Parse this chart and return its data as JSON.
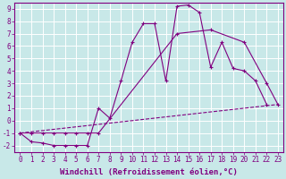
{
  "xlabel": "Windchill (Refroidissement éolien,°C)",
  "bg_color": "#c8e8e8",
  "line_color": "#800080",
  "grid_color": "#aacccc",
  "xlim": [
    -0.5,
    23.5
  ],
  "ylim": [
    -2.5,
    9.5
  ],
  "xticks": [
    0,
    1,
    2,
    3,
    4,
    5,
    6,
    7,
    8,
    9,
    10,
    11,
    12,
    13,
    14,
    15,
    16,
    17,
    18,
    19,
    20,
    21,
    22,
    23
  ],
  "yticks": [
    -2,
    -1,
    0,
    1,
    2,
    3,
    4,
    5,
    6,
    7,
    8,
    9
  ],
  "line1_x": [
    0,
    1,
    2,
    3,
    4,
    5,
    6,
    7,
    8,
    9,
    10,
    11,
    12,
    13,
    14,
    15,
    16,
    17,
    18,
    19,
    20,
    21,
    22
  ],
  "line1_y": [
    -1.0,
    -1.7,
    -1.8,
    -2.0,
    -2.0,
    -2.0,
    -2.0,
    1.0,
    0.2,
    3.2,
    6.3,
    7.8,
    7.8,
    3.2,
    9.2,
    9.3,
    8.7,
    4.3,
    6.3,
    4.2,
    4.0,
    3.2,
    1.3
  ],
  "line2_x": [
    0,
    1,
    2,
    3,
    4,
    5,
    6,
    7,
    14,
    17,
    20,
    22,
    23
  ],
  "line2_y": [
    -1.0,
    -1.0,
    -1.0,
    -1.0,
    -1.0,
    -1.0,
    -1.0,
    -1.0,
    7.0,
    7.3,
    6.3,
    3.0,
    1.3
  ],
  "line3_x": [
    0,
    23
  ],
  "line3_y": [
    -1.0,
    1.3
  ],
  "font": "monospace",
  "tick_fontsize": 5.5,
  "label_fontsize": 6.5
}
